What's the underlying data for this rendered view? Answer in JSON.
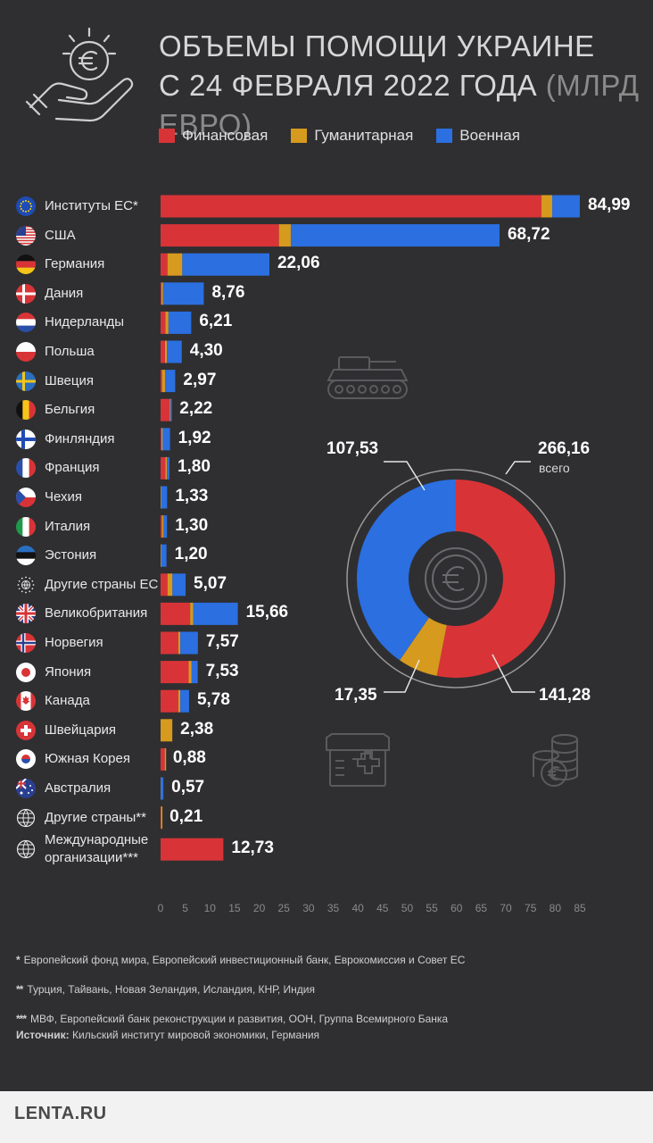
{
  "title_line1": "ОБЪЕМЫ ПОМОЩИ УКРАИНЕ",
  "title_line2": "С 24 ФЕВРАЛЯ 2022 ГОДА",
  "title_unit": "(МЛРД ЕВРО)",
  "colors": {
    "financial": "#d83437",
    "humanitarian": "#d69a1e",
    "military": "#2b6fe0",
    "background": "#2f2f31"
  },
  "chart_data": [
    {
      "type": "bar",
      "orientation": "horizontal",
      "stacked": true,
      "xlim": [
        0,
        85
      ],
      "xticks": [
        "0",
        "5",
        "10",
        "15",
        "20",
        "25",
        "30",
        "35",
        "40",
        "45",
        "50",
        "55",
        "60",
        "65",
        "70",
        "75",
        "80",
        "85"
      ],
      "legend": [
        "Финансовая",
        "Гуманитарная",
        "Военная"
      ],
      "categories": [
        {
          "label": "Институты ЕС*",
          "flag": "eu-flag",
          "total": "84,99",
          "financial": 77.2,
          "humanitarian": 2.2,
          "military": 5.59
        },
        {
          "label": "США",
          "flag": "us-flag",
          "total": "68,72",
          "financial": 24.0,
          "humanitarian": 2.4,
          "military": 42.32
        },
        {
          "label": "Германия",
          "flag": "de-flag",
          "total": "22,06",
          "financial": 1.4,
          "humanitarian": 3.0,
          "military": 17.66
        },
        {
          "label": "Дания",
          "flag": "dk-flag",
          "total": "8,76",
          "financial": 0.2,
          "humanitarian": 0.3,
          "military": 8.26
        },
        {
          "label": "Нидерланды",
          "flag": "nl-flag",
          "total": "6,21",
          "financial": 1.0,
          "humanitarian": 0.6,
          "military": 4.61
        },
        {
          "label": "Польша",
          "flag": "pl-flag",
          "total": "4,30",
          "financial": 0.9,
          "humanitarian": 0.4,
          "military": 3.0
        },
        {
          "label": "Швеция",
          "flag": "se-flag",
          "total": "2,97",
          "financial": 0.3,
          "humanitarian": 0.6,
          "military": 2.07
        },
        {
          "label": "Бельгия",
          "flag": "be-flag",
          "total": "2,22",
          "financial": 1.9,
          "humanitarian": 0.1,
          "military": 0.22
        },
        {
          "label": "Финляндия",
          "flag": "fi-flag",
          "total": "1,92",
          "financial": 0.2,
          "humanitarian": 0.2,
          "military": 1.52
        },
        {
          "label": "Франция",
          "flag": "fr-flag",
          "total": "1,80",
          "financial": 1.0,
          "humanitarian": 0.3,
          "military": 0.5
        },
        {
          "label": "Чехия",
          "flag": "cz-flag",
          "total": "1,33",
          "financial": 0.0,
          "humanitarian": 0.1,
          "military": 1.23
        },
        {
          "label": "Италия",
          "flag": "it-flag",
          "total": "1,30",
          "financial": 0.3,
          "humanitarian": 0.3,
          "military": 0.7
        },
        {
          "label": "Эстония",
          "flag": "ee-flag",
          "total": "1,20",
          "financial": 0.0,
          "humanitarian": 0.1,
          "military": 1.1
        },
        {
          "label": "Другие страны ЕС",
          "flag": "eu-other-flag",
          "total": "5,07",
          "financial": 1.4,
          "humanitarian": 1.0,
          "military": 2.67
        },
        {
          "label": "Великобритания",
          "flag": "gb-flag",
          "total": "15,66",
          "financial": 6.0,
          "humanitarian": 0.6,
          "military": 9.06
        },
        {
          "label": "Норвегия",
          "flag": "no-flag",
          "total": "7,57",
          "financial": 3.6,
          "humanitarian": 0.4,
          "military": 3.57
        },
        {
          "label": "Япония",
          "flag": "jp-flag",
          "total": "7,53",
          "financial": 5.7,
          "humanitarian": 0.6,
          "military": 1.23
        },
        {
          "label": "Канада",
          "flag": "ca-flag",
          "total": "5,78",
          "financial": 3.6,
          "humanitarian": 0.4,
          "military": 1.78
        },
        {
          "label": "Швейцария",
          "flag": "ch-flag",
          "total": "2,38",
          "financial": 0.0,
          "humanitarian": 2.38,
          "military": 0.0
        },
        {
          "label": "Южная Корея",
          "flag": "kr-flag",
          "total": "0,88",
          "financial": 0.85,
          "humanitarian": 0.03,
          "military": 0.0
        },
        {
          "label": "Австралия",
          "flag": "au-flag",
          "total": "0,57",
          "financial": 0.0,
          "humanitarian": 0.04,
          "military": 0.53
        },
        {
          "label": "Другие страны**",
          "flag": "globe-icon",
          "total": "0,21",
          "financial": 0.1,
          "humanitarian": 0.11,
          "military": 0.0
        },
        {
          "label": "Международные организации***",
          "flag": "globe-icon",
          "total": "12,73",
          "financial": 12.73,
          "humanitarian": 0.0,
          "military": 0.0
        }
      ]
    },
    {
      "type": "pie",
      "donut": true,
      "slices": [
        {
          "name": "Финансовая",
          "value": 141.28,
          "label": "141,28"
        },
        {
          "name": "Гуманитарная",
          "value": 17.35,
          "label": "17,35"
        },
        {
          "name": "Военная",
          "value": 107.53,
          "label": "107,53"
        }
      ],
      "total_label": "266,16",
      "total_sub": "всего"
    }
  ],
  "notes": [
    {
      "mark": "*",
      "text": "Европейский фонд мира, Европейский инвестиционный банк, Еврокомиссия и Совет ЕС"
    },
    {
      "mark": "**",
      "text": "Турция, Тайвань, Новая Зеландия, Исландия, КНР, Индия"
    },
    {
      "mark": "***",
      "text": "МВФ, Европейский банк реконструкции и развития, ООН, Группа Всемирного Банка"
    }
  ],
  "source_label": "Источник:",
  "source_text": "Кильский институт мировой экономики, Германия",
  "logo": "LENTA.RU"
}
